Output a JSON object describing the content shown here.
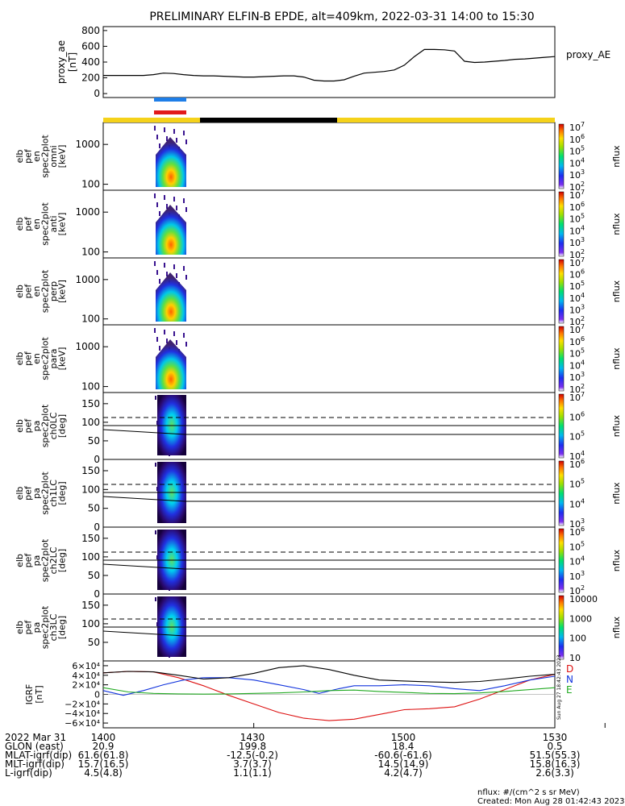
{
  "title": "PRELIMINARY ELFIN-B EPDE, alt=409km, 2022-03-31 14:00 to 15:30",
  "chart_data": [
    {
      "type": "line",
      "panel": "proxy_ae",
      "ylabel": [
        "proxy_ae",
        "[nT]"
      ],
      "legend": "proxy_AE",
      "ylim": [
        -50,
        850
      ],
      "yticks": [
        "800",
        "600",
        "400",
        "200",
        "0"
      ],
      "series": [
        {
          "name": "proxy_AE",
          "x": [
            1400,
            1402,
            1404,
            1406,
            1408,
            1410,
            1412,
            1414,
            1416,
            1418,
            1420,
            1422,
            1424,
            1426,
            1428,
            1430,
            1432,
            1434,
            1436,
            1438,
            1440,
            1442,
            1444,
            1446,
            1448,
            1450,
            1452,
            1454,
            1456,
            1458,
            1460,
            1462,
            1464,
            1466,
            1468,
            1470,
            1472,
            1474,
            1476,
            1478,
            1480,
            1482,
            1484,
            1486,
            1488,
            1490
          ],
          "values": [
            230,
            230,
            230,
            230,
            230,
            240,
            260,
            255,
            240,
            230,
            225,
            225,
            220,
            215,
            210,
            210,
            215,
            220,
            225,
            225,
            210,
            170,
            160,
            160,
            175,
            220,
            260,
            270,
            280,
            300,
            360,
            470,
            560,
            560,
            555,
            540,
            410,
            395,
            400,
            410,
            420,
            435,
            440,
            450,
            460,
            470
          ]
        }
      ]
    },
    {
      "type": "heatmap",
      "panel": "spectrogram-omni",
      "ylabel": [
        "elb",
        "pef",
        "en",
        "spec2plot",
        "omni",
        "[keV]"
      ],
      "yticks": [
        "1000",
        "100"
      ],
      "colorbar": {
        "label": "nflux",
        "ticks": [
          "10^7",
          "10^6",
          "10^5",
          "10^4",
          "10^3",
          "10^2"
        ]
      }
    },
    {
      "type": "heatmap",
      "panel": "spectrogram-anti",
      "ylabel": [
        "elb",
        "pef",
        "en",
        "spec2plot",
        "anti",
        "[keV]"
      ],
      "yticks": [
        "1000",
        "100"
      ],
      "colorbar": {
        "label": "nflux",
        "ticks": [
          "10^7",
          "10^6",
          "10^5",
          "10^4",
          "10^3",
          "10^2"
        ]
      }
    },
    {
      "type": "heatmap",
      "panel": "spectrogram-perp",
      "ylabel": [
        "elb",
        "pef",
        "en",
        "spec2plot",
        "perp",
        "[keV]"
      ],
      "yticks": [
        "1000",
        "100"
      ],
      "colorbar": {
        "label": "nflux",
        "ticks": [
          "10^7",
          "10^6",
          "10^5",
          "10^4",
          "10^3",
          "10^2"
        ]
      }
    },
    {
      "type": "heatmap",
      "panel": "spectrogram-para",
      "ylabel": [
        "elb",
        "pef",
        "en",
        "spec2plot",
        "para",
        "[keV]"
      ],
      "yticks": [
        "1000",
        "100"
      ],
      "colorbar": {
        "label": "nflux",
        "ticks": [
          "10^7",
          "10^6",
          "10^5",
          "10^4",
          "10^3",
          "10^2"
        ]
      }
    },
    {
      "type": "heatmap",
      "panel": "pitch-angle-ch0LC",
      "ylabel": [
        "elb",
        "pef",
        "pa",
        "spec2plot",
        "ch0LC",
        "[deg]"
      ],
      "yticks": [
        "150",
        "100",
        "50",
        "0"
      ],
      "ylim": [
        0,
        180
      ],
      "colorbar": {
        "label": "nflux",
        "ticks": [
          "10^7",
          "10^6",
          "10^5",
          "10^4"
        ]
      }
    },
    {
      "type": "heatmap",
      "panel": "pitch-angle-ch1LC",
      "ylabel": [
        "elb",
        "pef",
        "pa",
        "spec2plot",
        "ch1LC",
        "[deg]"
      ],
      "yticks": [
        "150",
        "100",
        "50",
        "0"
      ],
      "ylim": [
        0,
        180
      ],
      "colorbar": {
        "label": "nflux",
        "ticks": [
          "10^6",
          "10^5",
          "10^4",
          "10^3"
        ]
      }
    },
    {
      "type": "heatmap",
      "panel": "pitch-angle-ch2LC",
      "ylabel": [
        "elb",
        "pef",
        "pa",
        "spec2plot",
        "ch2LC",
        "[deg]"
      ],
      "yticks": [
        "150",
        "100",
        "50",
        "0"
      ],
      "ylim": [
        0,
        180
      ],
      "colorbar": {
        "label": "nflux",
        "ticks": [
          "10^6",
          "10^5",
          "10^4",
          "10^3",
          "10^2"
        ]
      }
    },
    {
      "type": "heatmap",
      "panel": "pitch-angle-ch3LC",
      "ylabel": [
        "elb",
        "pef",
        "pa",
        "spec2plot",
        "ch3LC",
        "[deg]"
      ],
      "yticks": [
        "150",
        "100",
        "50"
      ],
      "ylim": [
        0,
        180
      ],
      "colorbar": {
        "label": "nflux",
        "ticks": [
          "10000",
          "1000",
          "100",
          "10"
        ]
      }
    },
    {
      "type": "line",
      "panel": "igrf",
      "ylabel": [
        "IGRF",
        "[nT]"
      ],
      "ylim": [
        -70000,
        70000
      ],
      "yticks": [
        "6×10⁴",
        "4×10⁴",
        "2×10⁴",
        "0",
        "−2×10⁴",
        "−4×10⁴",
        "−6×10⁴"
      ],
      "yticks_values": [
        60000,
        40000,
        20000,
        0,
        -20000,
        -40000,
        -60000
      ],
      "legend": [
        "D",
        "N",
        "E"
      ],
      "series": [
        {
          "name": "D",
          "color": "#dd1111",
          "x": [
            1400,
            1405,
            1410,
            1415,
            1420,
            1425,
            1430,
            1435,
            1440,
            1445,
            1450,
            1455,
            1460,
            1465,
            1470,
            1475,
            1480,
            1485,
            1490
          ],
          "values": [
            45000,
            48000,
            47000,
            35000,
            18000,
            -2000,
            -20000,
            -38000,
            -50000,
            -55000,
            -52000,
            -42000,
            -32000,
            -30000,
            -26000,
            -10000,
            10000,
            30000,
            42000
          ]
        },
        {
          "name": "N",
          "color": "#1133dd",
          "x": [
            1400,
            1404,
            1408,
            1412,
            1416,
            1420,
            1425,
            1430,
            1435,
            1440,
            1443,
            1447,
            1450,
            1455,
            1460,
            1465,
            1470,
            1475,
            1480,
            1485,
            1490
          ],
          "values": [
            8000,
            -2000,
            8000,
            20000,
            30000,
            35000,
            35000,
            30000,
            20000,
            10000,
            2000,
            12000,
            18000,
            18000,
            20000,
            18000,
            12000,
            8000,
            18000,
            30000,
            38000
          ]
        },
        {
          "name": "E",
          "color": "#22aa22",
          "x": [
            1400,
            1405,
            1410,
            1415,
            1420,
            1425,
            1430,
            1435,
            1440,
            1445,
            1450,
            1455,
            1460,
            1465,
            1470,
            1475,
            1480,
            1485,
            1490
          ],
          "values": [
            14000,
            5000,
            2000,
            1000,
            500,
            1000,
            2000,
            3000,
            5000,
            8000,
            9000,
            6000,
            4000,
            2000,
            1500,
            3000,
            6000,
            10000,
            14000
          ]
        },
        {
          "name": "total",
          "color": "#000000",
          "x": [
            1400,
            1405,
            1410,
            1415,
            1420,
            1425,
            1430,
            1435,
            1440,
            1445,
            1450,
            1455,
            1460,
            1465,
            1470,
            1475,
            1480,
            1485,
            1490
          ],
          "values": [
            45000,
            48000,
            47000,
            40000,
            32000,
            35000,
            44000,
            56000,
            60000,
            52000,
            40000,
            30000,
            28000,
            26000,
            25000,
            27000,
            32000,
            38000,
            42000
          ]
        }
      ]
    }
  ],
  "ephemeris": {
    "headers": [
      "2022 Mar 31",
      "GLON (east)",
      "MLAT-igrf(dip)",
      "MLT-igrf(dip)",
      "L-igrf(dip)"
    ],
    "columns": [
      {
        "time": "1400",
        "values": [
          "20.9",
          "61.6(61.8)",
          "15.7(16.5)",
          "4.5(4.8)"
        ]
      },
      {
        "time": "1430",
        "values": [
          "199.8",
          "-12.5(-0.2)",
          "3.7(3.7)",
          "1.1(1.1)"
        ]
      },
      {
        "time": "1500",
        "values": [
          "18.4",
          "-60.6(-61.6)",
          "14.5(14.9)",
          "4.2(4.7)"
        ]
      },
      {
        "time": "1530",
        "values": [
          "0.5",
          "51.5(55.3)",
          "15.8(16.3)",
          "2.6(3.3)"
        ]
      }
    ]
  },
  "footer": {
    "units": "nflux: #/(cm^2 s sr MeV)",
    "created": "Created: Mon Aug 28 01:42:43 2023",
    "side_stamp": "Sun Aug 27 18:42:43 2023"
  },
  "colors": {
    "orbit_bar_yellow": "#f5d21a",
    "orbit_bar_black": "#000000",
    "science_zone_blue": "#1e7ee8",
    "science_zone_red": "#e21a1a"
  }
}
